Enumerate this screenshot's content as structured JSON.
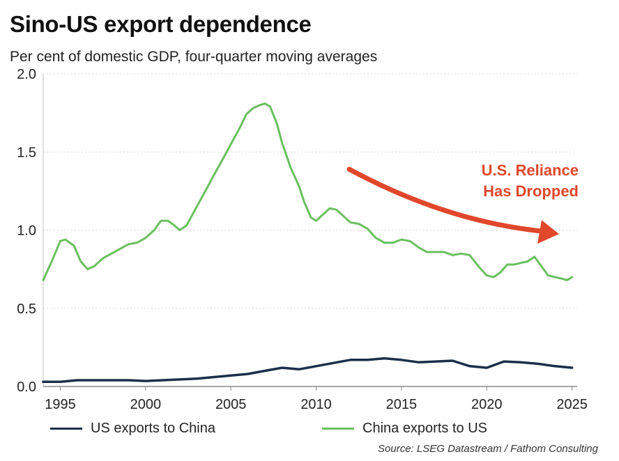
{
  "chart_data": {
    "type": "line",
    "title": "Sino-US export dependence",
    "subtitle": "Per cent of domestic GDP, four-quarter moving averages",
    "xlabel": "",
    "ylabel": "",
    "xlim": [
      1994,
      2025.3
    ],
    "ylim": [
      0,
      2.0
    ],
    "x_ticks": [
      1995,
      2000,
      2005,
      2010,
      2015,
      2020,
      2025
    ],
    "x_tick_labels": [
      "1995",
      "2000",
      "2005",
      "2010",
      "2015",
      "2020",
      "2025"
    ],
    "y_ticks": [
      0,
      0.5,
      1.0,
      1.5,
      2.0
    ],
    "y_tick_labels": [
      "0.0",
      "0.5",
      "1.0",
      "1.5",
      "2.0"
    ],
    "grid": "horizontal",
    "legend_position": "bottom",
    "annotation": {
      "lines": [
        "U.S. Reliance",
        "Has Dropped"
      ],
      "color": "#e0472b"
    },
    "source": "Source: LSEG Datastream / Fathom Consulting",
    "series": [
      {
        "name": "US exports to China",
        "color": "#1b2f4b",
        "x": [
          1994,
          1995,
          1996,
          1997,
          1998,
          1999,
          2000,
          2001,
          2002,
          2003,
          2004,
          2005,
          2006,
          2007,
          2008,
          2009,
          2010,
          2011,
          2012,
          2013,
          2014,
          2015,
          2016,
          2017,
          2018,
          2019,
          2020,
          2021,
          2022,
          2023,
          2024,
          2025
        ],
        "values": [
          0.03,
          0.03,
          0.04,
          0.04,
          0.04,
          0.04,
          0.035,
          0.04,
          0.045,
          0.05,
          0.06,
          0.07,
          0.08,
          0.1,
          0.12,
          0.11,
          0.13,
          0.15,
          0.17,
          0.17,
          0.18,
          0.17,
          0.155,
          0.16,
          0.165,
          0.13,
          0.12,
          0.16,
          0.155,
          0.145,
          0.13,
          0.12
        ]
      },
      {
        "name": "China exports to US",
        "color": "#6abf5f",
        "x": [
          1994,
          1994.5,
          1995,
          1995.3,
          1995.8,
          1996.2,
          1996.6,
          1997,
          1997.5,
          1998,
          1998.5,
          1999,
          1999.5,
          2000,
          2000.5,
          2000.9,
          2001.3,
          2001.7,
          2002,
          2002.4,
          2003,
          2003.5,
          2004,
          2004.5,
          2005,
          2005.5,
          2005.9,
          2006.3,
          2006.7,
          2007,
          2007.3,
          2007.7,
          2008,
          2008.5,
          2009,
          2009.3,
          2009.7,
          2010,
          2010.4,
          2010.8,
          2011.2,
          2011.6,
          2012,
          2012.5,
          2013,
          2013.5,
          2014,
          2014.5,
          2015,
          2015.5,
          2016,
          2016.5,
          2017,
          2017.5,
          2018,
          2018.5,
          2019,
          2019.5,
          2020,
          2020.4,
          2020.8,
          2021.2,
          2021.6,
          2022,
          2022.4,
          2022.8,
          2023.2,
          2023.6,
          2024,
          2024.4,
          2024.7,
          2025
        ],
        "values": [
          0.68,
          0.8,
          0.93,
          0.94,
          0.9,
          0.8,
          0.75,
          0.77,
          0.82,
          0.85,
          0.88,
          0.91,
          0.92,
          0.95,
          1.0,
          1.06,
          1.06,
          1.03,
          1.0,
          1.03,
          1.15,
          1.25,
          1.35,
          1.45,
          1.55,
          1.65,
          1.74,
          1.78,
          1.8,
          1.81,
          1.79,
          1.68,
          1.56,
          1.4,
          1.28,
          1.18,
          1.08,
          1.06,
          1.1,
          1.14,
          1.13,
          1.09,
          1.05,
          1.04,
          1.01,
          0.95,
          0.92,
          0.92,
          0.94,
          0.93,
          0.89,
          0.86,
          0.86,
          0.86,
          0.84,
          0.85,
          0.84,
          0.77,
          0.71,
          0.7,
          0.73,
          0.78,
          0.78,
          0.79,
          0.8,
          0.83,
          0.77,
          0.71,
          0.7,
          0.69,
          0.68,
          0.7
        ]
      }
    ]
  }
}
